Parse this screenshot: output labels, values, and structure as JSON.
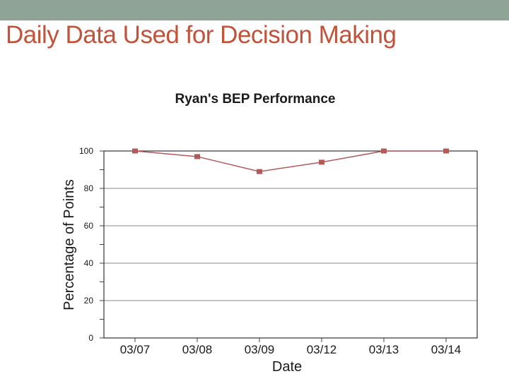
{
  "slide": {
    "title": "Daily Data Used for Decision Making",
    "band_color": "#8fa397",
    "title_color": "#c0533a"
  },
  "chart_data": {
    "type": "line",
    "title": "Ryan's BEP Performance",
    "xlabel": "Date",
    "ylabel": "Percentage of Points",
    "categories": [
      "03/07",
      "03/08",
      "03/09",
      "03/12",
      "03/13",
      "03/14"
    ],
    "series": [
      {
        "values": [
          100,
          97,
          89,
          94,
          100,
          100
        ],
        "color": "#b05a5a"
      }
    ],
    "ylim": [
      0,
      100
    ],
    "yticks": [
      0,
      20,
      40,
      60,
      80,
      100
    ],
    "grid": true,
    "legend": "none"
  }
}
